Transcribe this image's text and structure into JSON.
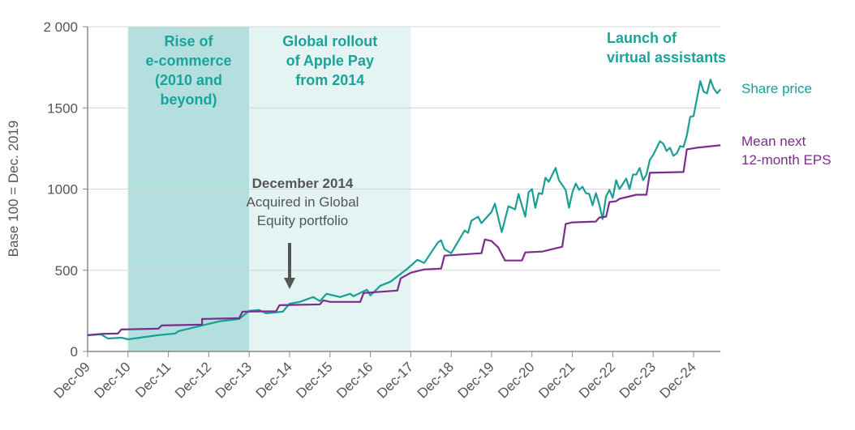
{
  "chart_data": {
    "type": "line",
    "title": "",
    "xlabel": "",
    "ylabel": "Base 100 = Dec. 2019",
    "ylim": [
      0,
      2000
    ],
    "yticks": [
      0,
      500,
      1000,
      1500,
      2000
    ],
    "ytick_labels": [
      "0",
      "500",
      "1000",
      "1500",
      "2 000"
    ],
    "xlim": [
      "2009-12",
      "2025-08"
    ],
    "xtick_labels": [
      "Dec-09",
      "Dec-10",
      "Dec-11",
      "Dec-12",
      "Dec-13",
      "Dec-14",
      "Dec-15",
      "Dec-16",
      "Dec-17",
      "Dec-18",
      "Dec-19",
      "Dec-20",
      "Dec-21",
      "Dec-22",
      "Dec-23",
      "Dec-24"
    ],
    "grid": "horizontal",
    "legend": "right, inline labels",
    "series": [
      {
        "name": "Share price",
        "color": "#1a9e96",
        "points": [
          [
            "2009-12",
            100
          ],
          [
            "2010-04",
            105
          ],
          [
            "2010-06",
            80
          ],
          [
            "2010-10",
            85
          ],
          [
            "2010-12",
            75
          ],
          [
            "2011-09",
            100
          ],
          [
            "2012-02",
            110
          ],
          [
            "2012-03",
            125
          ],
          [
            "2012-08",
            150
          ],
          [
            "2013-03",
            185
          ],
          [
            "2013-09",
            200
          ],
          [
            "2013-12",
            250
          ],
          [
            "2014-03",
            255
          ],
          [
            "2014-05",
            235
          ],
          [
            "2014-10",
            245
          ],
          [
            "2014-12",
            295
          ],
          [
            "2015-03",
            305
          ],
          [
            "2015-07",
            335
          ],
          [
            "2015-09",
            310
          ],
          [
            "2015-11",
            355
          ],
          [
            "2016-03",
            335
          ],
          [
            "2016-06",
            355
          ],
          [
            "2016-07",
            340
          ],
          [
            "2016-11",
            380
          ],
          [
            "2016-12",
            345
          ],
          [
            "2017-03",
            405
          ],
          [
            "2017-06",
            430
          ],
          [
            "2017-11",
            510
          ],
          [
            "2018-02",
            565
          ],
          [
            "2018-04",
            545
          ],
          [
            "2018-08",
            670
          ],
          [
            "2018-09",
            685
          ],
          [
            "2018-10",
            630
          ],
          [
            "2018-12",
            605
          ],
          [
            "2019-04",
            745
          ],
          [
            "2019-05",
            730
          ],
          [
            "2019-06",
            805
          ],
          [
            "2019-08",
            830
          ],
          [
            "2019-09",
            790
          ],
          [
            "2019-12",
            860
          ],
          [
            "2020-01",
            910
          ],
          [
            "2020-03",
            735
          ],
          [
            "2020-05",
            895
          ],
          [
            "2020-07",
            875
          ],
          [
            "2020-08",
            970
          ],
          [
            "2020-10",
            830
          ],
          [
            "2020-11",
            980
          ],
          [
            "2020-12",
            1000
          ],
          [
            "2021-01",
            885
          ],
          [
            "2021-02",
            975
          ],
          [
            "2021-03",
            970
          ],
          [
            "2021-04",
            1070
          ],
          [
            "2021-05",
            1045
          ],
          [
            "2021-07",
            1130
          ],
          [
            "2021-08",
            1055
          ],
          [
            "2021-10",
            995
          ],
          [
            "2021-11",
            885
          ],
          [
            "2021-12",
            980
          ],
          [
            "2022-01",
            1035
          ],
          [
            "2022-02",
            995
          ],
          [
            "2022-03",
            1015
          ],
          [
            "2022-04",
            975
          ],
          [
            "2022-05",
            970
          ],
          [
            "2022-06",
            900
          ],
          [
            "2022-07",
            975
          ],
          [
            "2022-08",
            905
          ],
          [
            "2022-09",
            815
          ],
          [
            "2022-10",
            955
          ],
          [
            "2022-11",
            995
          ],
          [
            "2022-12",
            945
          ],
          [
            "2023-01",
            1055
          ],
          [
            "2023-02",
            1000
          ],
          [
            "2023-04",
            1065
          ],
          [
            "2023-05",
            1000
          ],
          [
            "2023-06",
            1090
          ],
          [
            "2023-07",
            1090
          ],
          [
            "2023-08",
            1130
          ],
          [
            "2023-09",
            1055
          ],
          [
            "2023-10",
            1090
          ],
          [
            "2023-11",
            1180
          ],
          [
            "2023-12",
            1210
          ],
          [
            "2024-02",
            1295
          ],
          [
            "2024-03",
            1280
          ],
          [
            "2024-04",
            1235
          ],
          [
            "2024-05",
            1255
          ],
          [
            "2024-06",
            1205
          ],
          [
            "2024-07",
            1220
          ],
          [
            "2024-08",
            1265
          ],
          [
            "2024-09",
            1260
          ],
          [
            "2024-10",
            1330
          ],
          [
            "2024-11",
            1445
          ],
          [
            "2024-12",
            1450
          ],
          [
            "2025-02",
            1665
          ],
          [
            "2025-03",
            1600
          ],
          [
            "2025-04",
            1590
          ],
          [
            "2025-05",
            1675
          ],
          [
            "2025-06",
            1620
          ],
          [
            "2025-07",
            1590
          ],
          [
            "2025-08",
            1615
          ]
        ]
      },
      {
        "name": "Mean next 12-month EPS",
        "color": "#7b2d8b",
        "points": [
          [
            "2009-12",
            100
          ],
          [
            "2010-04",
            108
          ],
          [
            "2010-09",
            110
          ],
          [
            "2010-10",
            135
          ],
          [
            "2011-09",
            140
          ],
          [
            "2011-10",
            160
          ],
          [
            "2012-10",
            165
          ],
          [
            "2012-10",
            200
          ],
          [
            "2013-09",
            205
          ],
          [
            "2013-10",
            245
          ],
          [
            "2014-08",
            248
          ],
          [
            "2014-09",
            285
          ],
          [
            "2015-09",
            290
          ],
          [
            "2015-10",
            315
          ],
          [
            "2015-12",
            305
          ],
          [
            "2016-09",
            305
          ],
          [
            "2016-10",
            360
          ],
          [
            "2017-08",
            375
          ],
          [
            "2017-09",
            450
          ],
          [
            "2017-12",
            485
          ],
          [
            "2018-04",
            505
          ],
          [
            "2018-09",
            510
          ],
          [
            "2018-10",
            590
          ],
          [
            "2019-09",
            605
          ],
          [
            "2019-10",
            690
          ],
          [
            "2019-12",
            680
          ],
          [
            "2020-02",
            640
          ],
          [
            "2020-04",
            560
          ],
          [
            "2020-09",
            560
          ],
          [
            "2020-10",
            610
          ],
          [
            "2021-03",
            615
          ],
          [
            "2021-06",
            630
          ],
          [
            "2021-09",
            645
          ],
          [
            "2021-10",
            785
          ],
          [
            "2021-12",
            795
          ],
          [
            "2022-07",
            800
          ],
          [
            "2022-08",
            825
          ],
          [
            "2022-10",
            830
          ],
          [
            "2022-11",
            920
          ],
          [
            "2023-01",
            925
          ],
          [
            "2023-02",
            940
          ],
          [
            "2023-04",
            950
          ],
          [
            "2023-07",
            965
          ],
          [
            "2023-10",
            965
          ],
          [
            "2023-11",
            1100
          ],
          [
            "2024-09",
            1105
          ],
          [
            "2024-10",
            1245
          ],
          [
            "2025-01",
            1255
          ],
          [
            "2025-08",
            1270
          ]
        ]
      }
    ],
    "bands": [
      {
        "from": "2010-12",
        "to": "2013-12",
        "color": "#b3e0de",
        "label_lines": [
          "Rise of",
          "e-commerce",
          "(2010 and",
          "beyond)"
        ]
      },
      {
        "from": "2013-12",
        "to": "2017-12",
        "color": "#e3f4f3",
        "label_lines": [
          "Global rollout",
          "of Apple Pay",
          "from 2014"
        ]
      }
    ],
    "annotations": {
      "assistants_lines": [
        "Launch of",
        "virtual assistants"
      ],
      "acquired_title": "December 2014",
      "acquired_lines": [
        "Acquired in Global",
        "Equity portfolio"
      ],
      "acquired_date": "2014-12"
    },
    "legend_labels": {
      "share": [
        "Share price"
      ],
      "eps": [
        "Mean next",
        "12-month EPS"
      ]
    }
  }
}
